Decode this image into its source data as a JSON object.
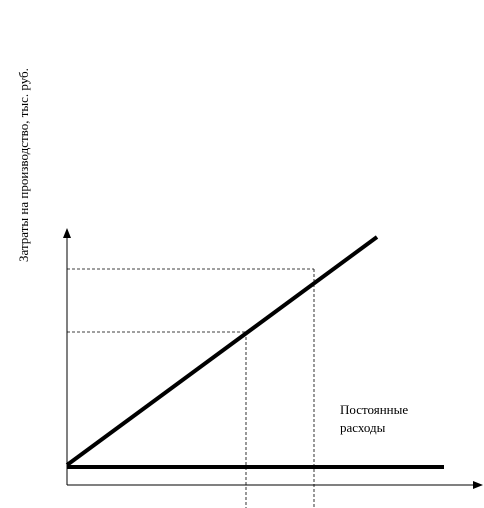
{
  "y_axis_label": "Затраты на производство, тыс. руб.",
  "annotation": {
    "lines": [
      "Постоянные",
      "расходы"
    ]
  }
}
